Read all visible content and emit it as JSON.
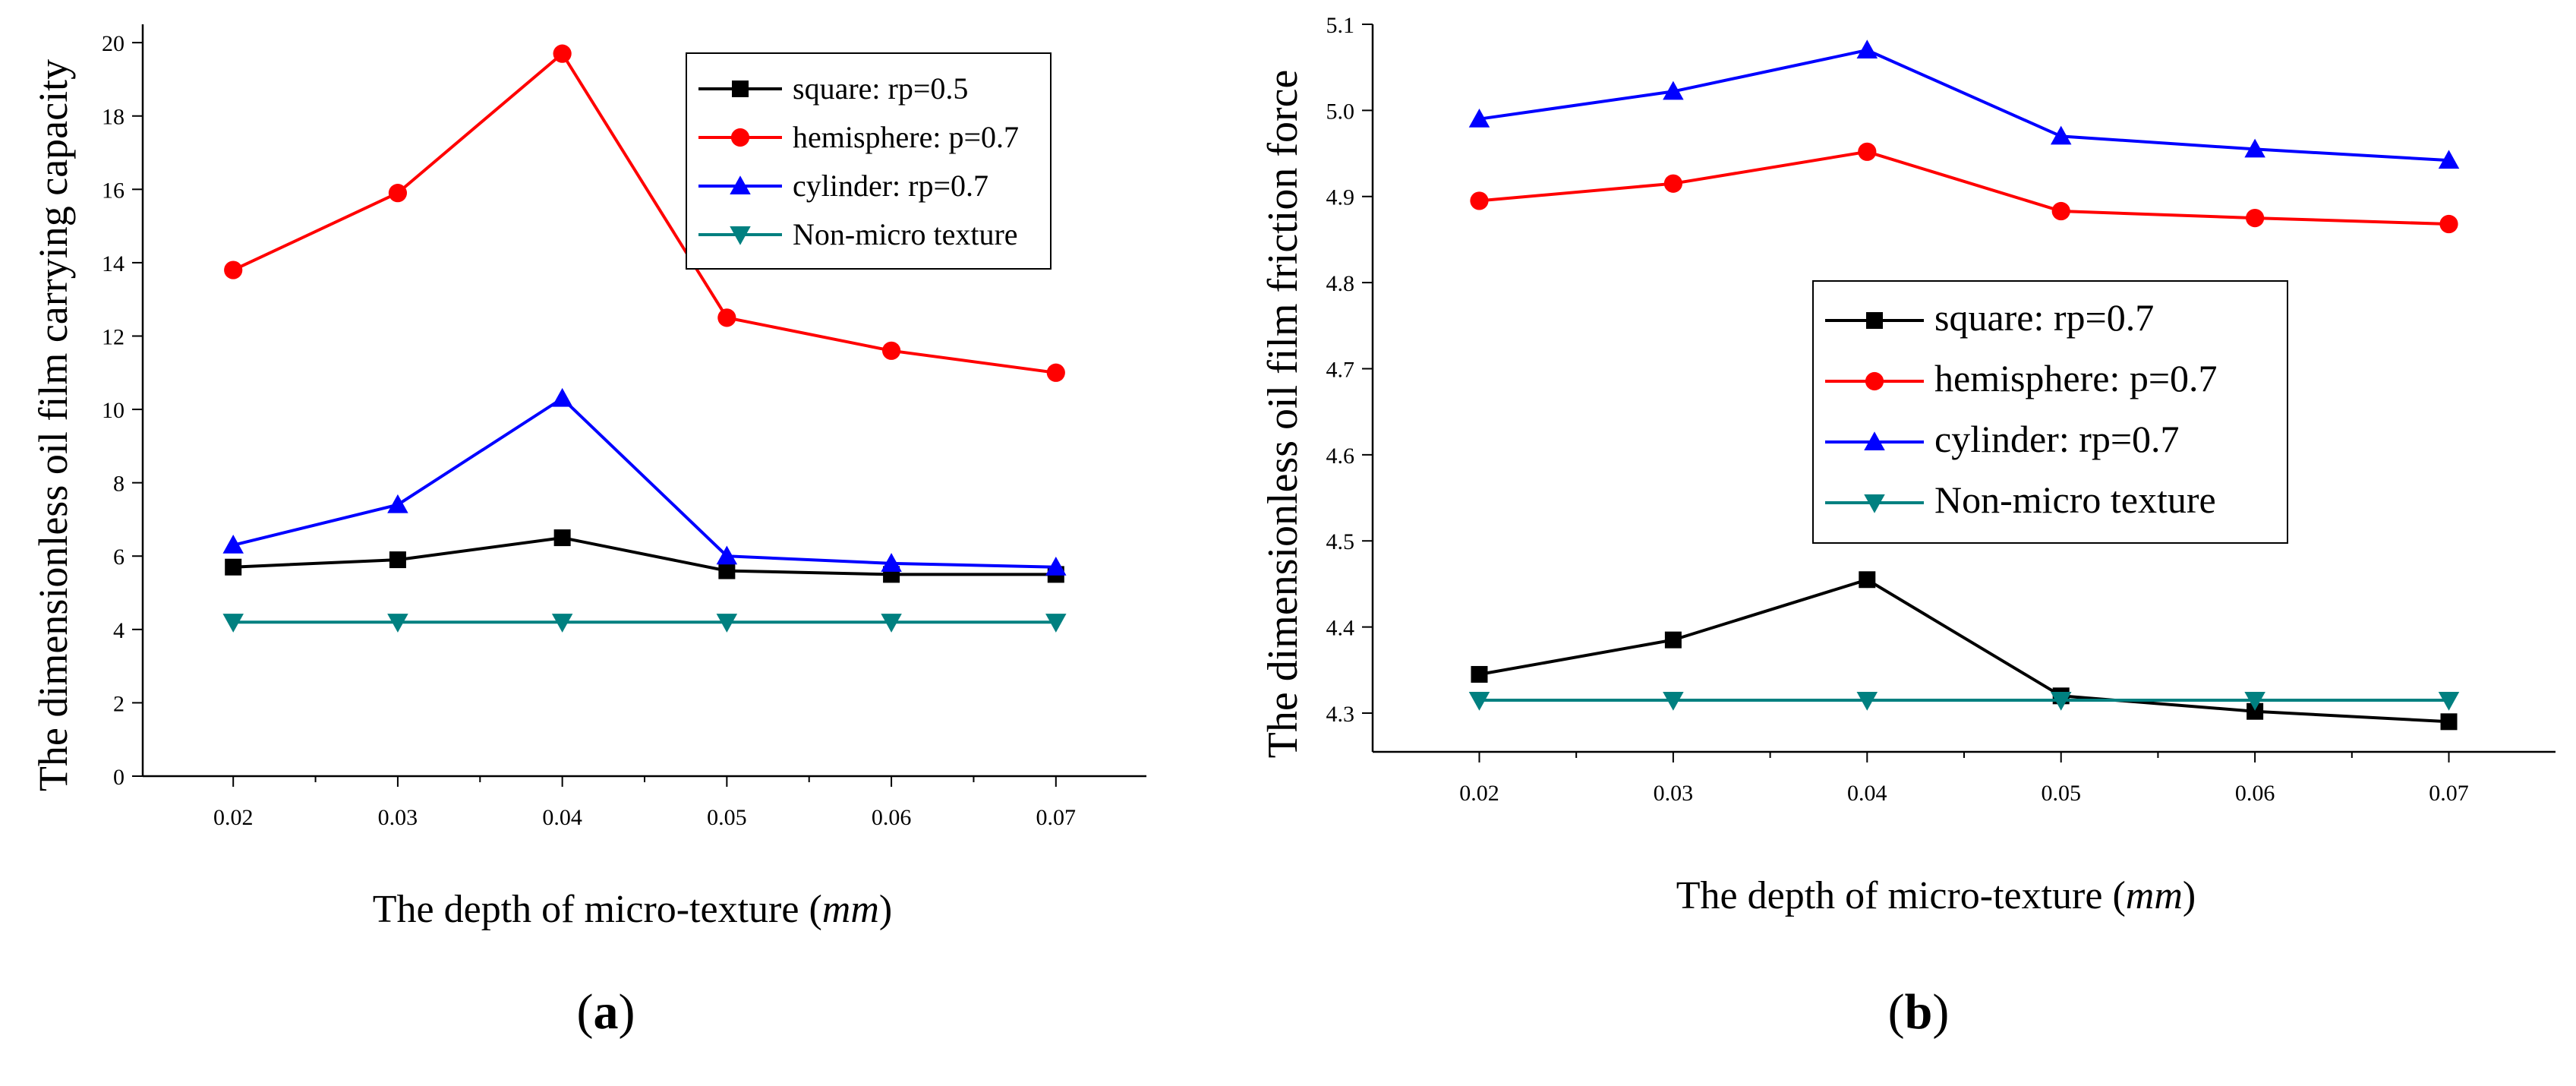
{
  "chart_data": [
    {
      "panel": "a",
      "panel_label": {
        "open": "(",
        "letter": "a",
        "close": ")"
      },
      "type": "line",
      "xlabel": {
        "text": "The depth of micro-texture (",
        "unit": "mm",
        "close": ")"
      },
      "ylabel": "The dimensionless oil film carrying capacity",
      "x": [
        0.02,
        0.03,
        0.04,
        0.05,
        0.06,
        0.07
      ],
      "xticks": [
        "0.02",
        "0.03",
        "0.04",
        "0.05",
        "0.06",
        "0.07"
      ],
      "xlim": [
        0.0145,
        0.0755
      ],
      "ylim": [
        0,
        20.5
      ],
      "yticks": [
        "0",
        "2",
        "4",
        "6",
        "8",
        "10",
        "12",
        "14",
        "16",
        "18",
        "20"
      ],
      "legend_position": "top-right",
      "series": [
        {
          "name": "square: rp=0.5",
          "color": "#000000",
          "marker": "square",
          "values": [
            5.7,
            5.9,
            6.5,
            5.6,
            5.5,
            5.5
          ]
        },
        {
          "name": "hemisphere: p=0.7",
          "color": "#ff0000",
          "marker": "circle",
          "values": [
            13.8,
            15.9,
            19.7,
            12.5,
            11.6,
            11.0
          ]
        },
        {
          "name": "cylinder: rp=0.7",
          "color": "#0000ff",
          "marker": "triangle-up",
          "values": [
            6.3,
            7.4,
            10.3,
            6.0,
            5.8,
            5.7
          ]
        },
        {
          "name": "Non-micro texture",
          "color": "#008080",
          "marker": "triangle-down",
          "values": [
            4.2,
            4.2,
            4.2,
            4.2,
            4.2,
            4.2
          ]
        }
      ]
    },
    {
      "panel": "b",
      "panel_label": {
        "open": "(",
        "letter": "b",
        "close": ")"
      },
      "type": "line",
      "xlabel": {
        "text": "The depth of micro-texture (",
        "unit": "mm",
        "close": ")"
      },
      "ylabel": "The dimensionless oil film friction force",
      "x": [
        0.02,
        0.03,
        0.04,
        0.05,
        0.06,
        0.07
      ],
      "xticks": [
        "0.02",
        "0.03",
        "0.04",
        "0.05",
        "0.06",
        "0.07"
      ],
      "xlim": [
        0.0145,
        0.0755
      ],
      "ylim": [
        4.255,
        5.1
      ],
      "yticks": [
        "4.3",
        "4.4",
        "4.5",
        "4.6",
        "4.7",
        "4.8",
        "4.9",
        "5.0",
        "5.1"
      ],
      "legend_position": "center-right",
      "series": [
        {
          "name": "square: rp=0.7",
          "color": "#000000",
          "marker": "square",
          "values": [
            4.345,
            4.385,
            4.455,
            4.32,
            4.302,
            4.29
          ]
        },
        {
          "name": "hemisphere: p=0.7",
          "color": "#ff0000",
          "marker": "circle",
          "values": [
            4.895,
            4.915,
            4.952,
            4.883,
            4.875,
            4.868
          ]
        },
        {
          "name": "cylinder: rp=0.7",
          "color": "#0000ff",
          "marker": "triangle-up",
          "values": [
            4.99,
            5.022,
            5.07,
            4.97,
            4.955,
            4.942
          ]
        },
        {
          "name": "Non-micro texture",
          "color": "#008080",
          "marker": "triangle-down",
          "values": [
            4.315,
            4.315,
            4.315,
            4.315,
            4.315,
            4.315
          ]
        }
      ]
    }
  ]
}
